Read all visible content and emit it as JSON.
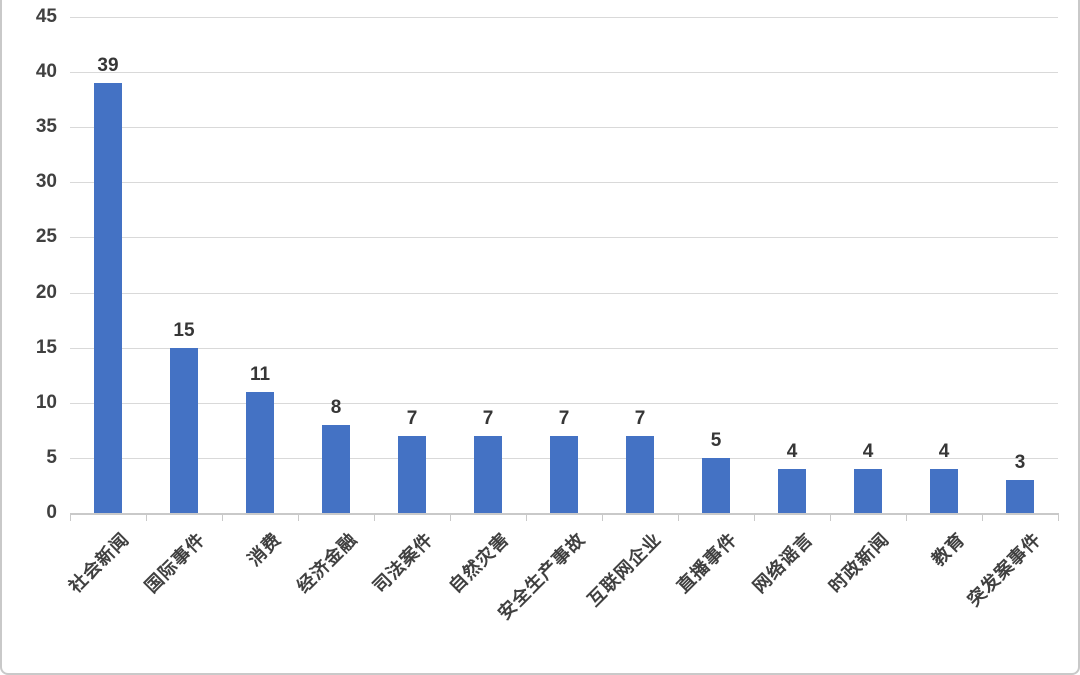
{
  "chart": {
    "colors": {
      "bar": "#4472C4",
      "gridline": "#d9d9d9",
      "axis_line": "#c9c9c9",
      "tick_text": "#404040",
      "data_label_text": "#363636",
      "frame_border": "#c9c9c9",
      "background": "#ffffff"
    }
  },
  "chart_data": {
    "type": "bar",
    "title": "",
    "xlabel": "",
    "ylabel": "",
    "categories": [
      "社会新闻",
      "国际事件",
      "消费",
      "经济金融",
      "司法案件",
      "自然灾害",
      "安全生产事故",
      "互联网企业",
      "直播事件",
      "网络谣言",
      "时政新闻",
      "教育",
      "突发案事件"
    ],
    "values": [
      39,
      15,
      11,
      8,
      7,
      7,
      7,
      7,
      5,
      4,
      4,
      4,
      3
    ],
    "data_labels": [
      "39",
      "15",
      "11",
      "8",
      "7",
      "7",
      "7",
      "7",
      "5",
      "4",
      "4",
      "4",
      "3"
    ],
    "ylim": [
      0,
      45
    ],
    "yticks": [
      0,
      5,
      10,
      15,
      20,
      25,
      30,
      35,
      40,
      45
    ],
    "ytick_labels": [
      "0",
      "5",
      "10",
      "15",
      "20",
      "25",
      "30",
      "35",
      "40",
      "45"
    ],
    "grid": true,
    "legend": false,
    "x_label_rotation_deg": -45,
    "bar_color": "#4472C4"
  }
}
